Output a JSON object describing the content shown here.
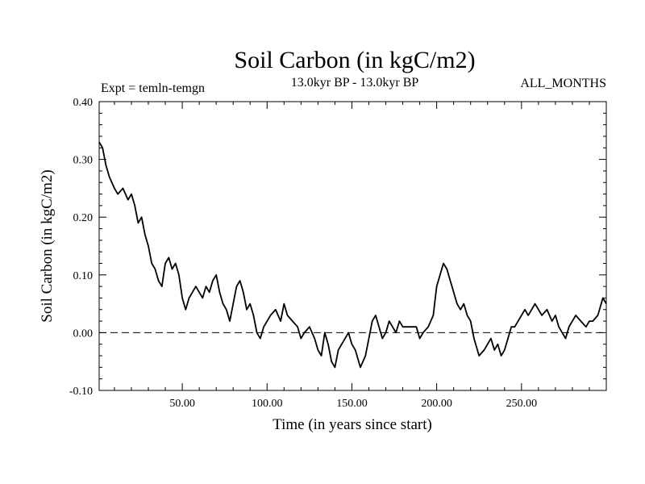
{
  "chart_data": {
    "type": "line",
    "title": "Soil Carbon (in kgC/m2)",
    "experiment_label": "Expt = temln-temgn",
    "period_label": "13.0kyr BP - 13.0kyr BP",
    "months_label": "ALL_MONTHS",
    "xlabel": "Time (in years since start)",
    "ylabel": "Soil Carbon (in kgC/m2)",
    "xlim": [
      1,
      300
    ],
    "ylim": [
      -0.1,
      0.4
    ],
    "xticks": [
      {
        "value": 50,
        "label": "50.00"
      },
      {
        "value": 100,
        "label": "100.00"
      },
      {
        "value": 150,
        "label": "150.00"
      },
      {
        "value": 200,
        "label": "200.00"
      },
      {
        "value": 250,
        "label": "250.00"
      }
    ],
    "yticks": [
      {
        "value": 0.4,
        "label": "0.40"
      },
      {
        "value": 0.3,
        "label": "0.30"
      },
      {
        "value": 0.2,
        "label": "0.20"
      },
      {
        "value": 0.1,
        "label": "0.10"
      },
      {
        "value": 0.0,
        "label": "0.00"
      },
      {
        "value": -0.1,
        "label": "-0.10"
      }
    ],
    "reference_line": {
      "y": 0.0,
      "style": "dashed"
    },
    "series": [
      {
        "name": "Soil Carbon",
        "x": [
          1,
          3,
          5,
          7,
          10,
          12,
          15,
          18,
          20,
          22,
          24,
          26,
          28,
          30,
          32,
          34,
          36,
          38,
          40,
          42,
          44,
          46,
          48,
          50,
          52,
          54,
          56,
          58,
          60,
          62,
          64,
          66,
          68,
          70,
          72,
          74,
          76,
          78,
          80,
          82,
          84,
          86,
          88,
          90,
          92,
          94,
          96,
          98,
          100,
          102,
          105,
          108,
          110,
          112,
          115,
          118,
          120,
          122,
          125,
          128,
          130,
          132,
          134,
          136,
          138,
          140,
          142,
          144,
          146,
          148,
          150,
          152,
          155,
          158,
          160,
          162,
          164,
          166,
          168,
          170,
          172,
          174,
          176,
          178,
          180,
          182,
          185,
          188,
          190,
          192,
          195,
          198,
          200,
          202,
          204,
          206,
          208,
          210,
          212,
          214,
          216,
          218,
          220,
          222,
          225,
          228,
          230,
          232,
          234,
          236,
          238,
          240,
          242,
          244,
          246,
          248,
          250,
          252,
          254,
          256,
          258,
          260,
          262,
          265,
          268,
          270,
          272,
          274,
          276,
          278,
          280,
          282,
          285,
          288,
          290,
          292,
          295,
          298,
          300
        ],
        "values": [
          0.33,
          0.32,
          0.29,
          0.27,
          0.25,
          0.24,
          0.25,
          0.23,
          0.24,
          0.22,
          0.19,
          0.2,
          0.17,
          0.15,
          0.12,
          0.11,
          0.09,
          0.08,
          0.12,
          0.13,
          0.11,
          0.12,
          0.1,
          0.06,
          0.04,
          0.06,
          0.07,
          0.08,
          0.07,
          0.06,
          0.08,
          0.07,
          0.09,
          0.1,
          0.07,
          0.05,
          0.04,
          0.02,
          0.05,
          0.08,
          0.09,
          0.07,
          0.04,
          0.05,
          0.03,
          0.0,
          -0.01,
          0.01,
          0.02,
          0.03,
          0.04,
          0.02,
          0.05,
          0.03,
          0.02,
          0.01,
          -0.01,
          0.0,
          0.01,
          -0.01,
          -0.03,
          -0.04,
          0.0,
          -0.02,
          -0.05,
          -0.06,
          -0.03,
          -0.02,
          -0.01,
          0.0,
          -0.02,
          -0.03,
          -0.06,
          -0.04,
          -0.01,
          0.02,
          0.03,
          0.01,
          -0.01,
          0.0,
          0.02,
          0.01,
          0.0,
          0.02,
          0.01,
          0.01,
          0.01,
          0.01,
          -0.01,
          0.0,
          0.01,
          0.03,
          0.08,
          0.1,
          0.12,
          0.11,
          0.09,
          0.07,
          0.05,
          0.04,
          0.05,
          0.03,
          0.02,
          -0.01,
          -0.04,
          -0.03,
          -0.02,
          -0.01,
          -0.03,
          -0.02,
          -0.04,
          -0.03,
          -0.01,
          0.01,
          0.01,
          0.02,
          0.03,
          0.04,
          0.03,
          0.04,
          0.05,
          0.04,
          0.03,
          0.04,
          0.02,
          0.03,
          0.01,
          0.0,
          -0.01,
          0.01,
          0.02,
          0.03,
          0.02,
          0.01,
          0.02,
          0.02,
          0.03,
          0.06,
          0.05
        ]
      }
    ]
  }
}
